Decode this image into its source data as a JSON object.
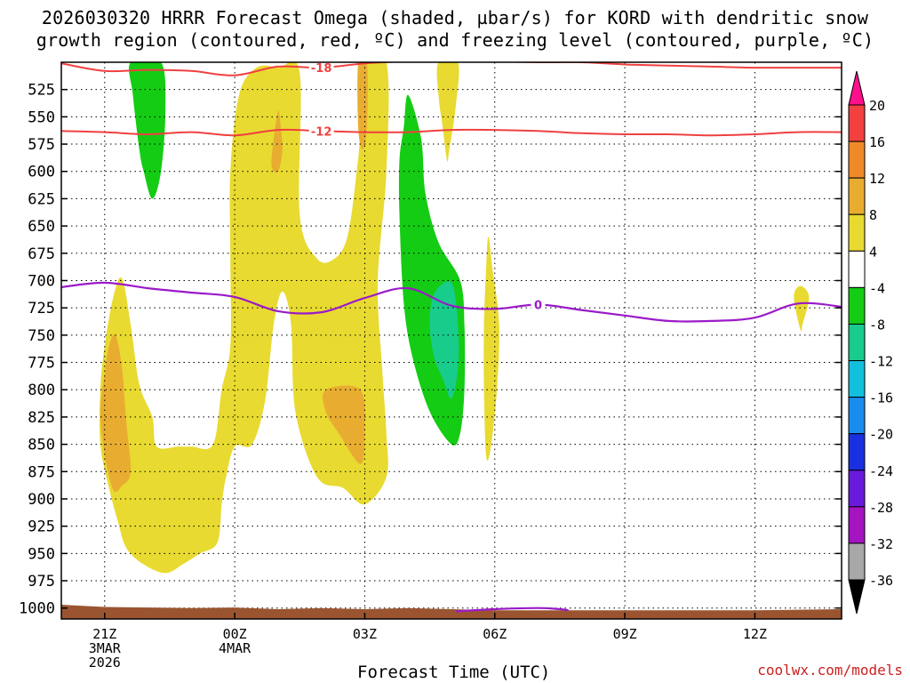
{
  "title_lines": [
    "2026030320 HRRR Forecast Omega (shaded, µbar/s) for KORD with dendritic snow",
    "growth region (contoured, red, ºC) and freezing level (contoured, purple, ºC)"
  ],
  "credit": "coolwx.com/models",
  "chart_data": {
    "type": "contour",
    "title": "2026030320 HRRR Forecast Omega (shaded, µbar/s) for KORD with dendritic snow growth region (contoured, red, ºC) and freezing level (contoured, purple, ºC)",
    "xlabel": "Forecast Time (UTC)",
    "ylabel": "",
    "x_units": "hours after 2026-03-03 20Z",
    "xlim": [
      0,
      18
    ],
    "ylim": [
      1010,
      500
    ],
    "y_levels": [
      525,
      550,
      575,
      600,
      625,
      650,
      675,
      700,
      725,
      750,
      775,
      800,
      825,
      850,
      875,
      900,
      925,
      950,
      975,
      1000
    ],
    "x_ticks": [
      {
        "x": 1,
        "lines": [
          "21Z",
          "3MAR",
          "2026"
        ]
      },
      {
        "x": 4,
        "lines": [
          "00Z",
          "4MAR"
        ]
      },
      {
        "x": 7,
        "lines": [
          "03Z"
        ]
      },
      {
        "x": 10,
        "lines": [
          "06Z"
        ]
      },
      {
        "x": 13,
        "lines": [
          "09Z"
        ]
      },
      {
        "x": 16,
        "lines": [
          "12Z"
        ]
      }
    ],
    "colorbar": {
      "labels": [
        "20",
        "16",
        "12",
        "8",
        "4",
        "-4",
        "-8",
        "-12",
        "-16",
        "-20",
        "-24",
        "-28",
        "-32",
        "-36"
      ],
      "colors": [
        "#ff0f8c",
        "#f24040",
        "#ee8a2a",
        "#e8ad30",
        "#e8da30",
        "#ffffff",
        "#14cc14",
        "#18cc8c",
        "#12c0dc",
        "#1a8cf0",
        "#1830e0",
        "#6a1adc",
        "#a414c0",
        "#a8a8a8",
        "#000000"
      ]
    },
    "omega_regions": [
      {
        "value": 4,
        "color": "#e8da30",
        "points": [
          [
            1.6,
            740
          ],
          [
            1.8,
            795
          ],
          [
            2.1,
            825
          ],
          [
            2.2,
            852
          ],
          [
            2.7,
            852
          ],
          [
            3.0,
            852
          ],
          [
            3.5,
            850
          ],
          [
            3.7,
            800
          ],
          [
            3.9,
            760
          ],
          [
            3.9,
            680
          ],
          [
            3.9,
            600
          ],
          [
            4.1,
            530
          ],
          [
            4.5,
            505
          ],
          [
            5.0,
            505
          ],
          [
            5.5,
            510
          ],
          [
            5.5,
            640
          ],
          [
            5.9,
            680
          ],
          [
            6.3,
            680
          ],
          [
            6.6,
            660
          ],
          [
            6.8,
            605
          ],
          [
            6.9,
            560
          ],
          [
            6.9,
            500
          ],
          [
            7.5,
            500
          ],
          [
            7.5,
            600
          ],
          [
            7.3,
            700
          ],
          [
            7.4,
            780
          ],
          [
            7.5,
            840
          ],
          [
            7.5,
            880
          ],
          [
            7.0,
            905
          ],
          [
            6.5,
            890
          ],
          [
            5.9,
            880
          ],
          [
            5.4,
            820
          ],
          [
            5.3,
            740
          ],
          [
            5.1,
            710
          ],
          [
            4.9,
            740
          ],
          [
            4.7,
            810
          ],
          [
            4.4,
            850
          ],
          [
            4.0,
            852
          ],
          [
            3.8,
            880
          ],
          [
            3.7,
            905
          ],
          [
            3.6,
            940
          ],
          [
            3.2,
            950
          ],
          [
            2.8,
            960
          ],
          [
            2.4,
            968
          ],
          [
            1.9,
            960
          ],
          [
            1.5,
            945
          ],
          [
            1.3,
            920
          ],
          [
            1.1,
            890
          ],
          [
            0.9,
            850
          ],
          [
            0.9,
            800
          ],
          [
            1.0,
            760
          ],
          [
            1.2,
            715
          ],
          [
            1.4,
            698
          ]
        ]
      },
      {
        "value": 8,
        "color": "#e8ad30",
        "points": [
          [
            1.1,
            760
          ],
          [
            1.25,
            750
          ],
          [
            1.4,
            780
          ],
          [
            1.5,
            830
          ],
          [
            1.6,
            875
          ],
          [
            1.4,
            888
          ],
          [
            1.2,
            892
          ],
          [
            1.0,
            860
          ],
          [
            0.9,
            820
          ],
          [
            1.0,
            785
          ]
        ]
      },
      {
        "value": 8,
        "color": "#e8ad30",
        "points": [
          [
            6.1,
            800
          ],
          [
            6.9,
            800
          ],
          [
            7.0,
            840
          ],
          [
            6.9,
            868
          ],
          [
            6.4,
            840
          ],
          [
            6.1,
            820
          ]
        ]
      },
      {
        "value": 8,
        "color": "#e8ad30",
        "points": [
          [
            4.9,
            570
          ],
          [
            5.0,
            545
          ],
          [
            5.05,
            555
          ],
          [
            5.1,
            580
          ],
          [
            5.0,
            600
          ],
          [
            4.85,
            595
          ]
        ]
      },
      {
        "value": 8,
        "color": "#e8ad30",
        "points": [
          [
            6.85,
            500
          ],
          [
            7.05,
            500
          ],
          [
            7.05,
            560
          ],
          [
            6.95,
            580
          ],
          [
            6.85,
            560
          ]
        ]
      },
      {
        "value": 4,
        "color": "#e8da30",
        "points": [
          [
            8.7,
            500
          ],
          [
            9.15,
            500
          ],
          [
            9.1,
            540
          ],
          [
            8.95,
            580
          ],
          [
            8.9,
            590
          ],
          [
            8.8,
            560
          ],
          [
            8.7,
            530
          ]
        ]
      },
      {
        "value": 4,
        "color": "#e8da30",
        "points": [
          [
            9.85,
            660
          ],
          [
            9.95,
            690
          ],
          [
            10.1,
            740
          ],
          [
            10.05,
            800
          ],
          [
            9.9,
            855
          ],
          [
            9.8,
            860
          ],
          [
            9.75,
            800
          ],
          [
            9.75,
            740
          ],
          [
            9.8,
            690
          ]
        ]
      },
      {
        "value": 4,
        "color": "#e8da30",
        "points": [
          [
            17.05,
            705
          ],
          [
            17.25,
            715
          ],
          [
            17.1,
            740
          ],
          [
            17.05,
            745
          ],
          [
            16.9,
            715
          ]
        ]
      },
      {
        "value": -4,
        "color": "#14cc14",
        "points": [
          [
            1.6,
            500
          ],
          [
            2.3,
            500
          ],
          [
            2.4,
            545
          ],
          [
            2.3,
            600
          ],
          [
            2.1,
            625
          ],
          [
            1.9,
            600
          ],
          [
            1.8,
            580
          ],
          [
            1.65,
            530
          ]
        ]
      },
      {
        "value": -4,
        "color": "#14cc14",
        "points": [
          [
            8.0,
            530
          ],
          [
            8.3,
            570
          ],
          [
            8.4,
            620
          ],
          [
            8.7,
            665
          ],
          [
            9.2,
            700
          ],
          [
            9.3,
            740
          ],
          [
            9.3,
            800
          ],
          [
            9.2,
            840
          ],
          [
            9.0,
            850
          ],
          [
            8.5,
            820
          ],
          [
            8.1,
            770
          ],
          [
            7.9,
            720
          ],
          [
            7.8,
            640
          ],
          [
            7.8,
            590
          ],
          [
            7.9,
            560
          ]
        ]
      },
      {
        "value": -8,
        "color": "#18cc8c",
        "points": [
          [
            8.6,
            712
          ],
          [
            9.0,
            702
          ],
          [
            9.15,
            740
          ],
          [
            9.15,
            780
          ],
          [
            9.0,
            808
          ],
          [
            8.8,
            790
          ],
          [
            8.6,
            770
          ],
          [
            8.5,
            740
          ]
        ]
      }
    ],
    "dgz_contours": [
      {
        "label": "-18",
        "color": "#f04040",
        "label_x": 6.0,
        "points": [
          [
            0,
            501
          ],
          [
            1,
            508
          ],
          [
            2,
            507
          ],
          [
            3,
            508
          ],
          [
            4,
            512
          ],
          [
            5,
            504
          ],
          [
            6,
            505
          ],
          [
            7,
            501
          ],
          [
            8,
            499
          ],
          [
            9,
            497
          ],
          [
            10,
            499
          ],
          [
            11,
            500
          ],
          [
            12,
            500
          ],
          [
            13,
            502
          ],
          [
            14,
            503
          ],
          [
            15,
            504
          ],
          [
            16,
            505
          ],
          [
            17,
            505
          ],
          [
            18,
            505
          ]
        ]
      },
      {
        "label": "-12",
        "color": "#f04040",
        "label_x": 6.0,
        "points": [
          [
            0,
            563
          ],
          [
            1,
            564
          ],
          [
            2,
            566
          ],
          [
            3,
            564
          ],
          [
            4,
            567
          ],
          [
            5,
            562
          ],
          [
            6,
            563
          ],
          [
            7,
            564
          ],
          [
            8,
            564
          ],
          [
            9,
            562
          ],
          [
            10,
            562
          ],
          [
            11,
            563
          ],
          [
            12,
            565
          ],
          [
            13,
            566
          ],
          [
            14,
            566
          ],
          [
            15,
            567
          ],
          [
            16,
            566
          ],
          [
            17,
            564
          ],
          [
            18,
            564
          ]
        ]
      }
    ],
    "freezing_level": {
      "label": "0",
      "color": "#9b1ac8",
      "label_x": 11.0,
      "points": [
        [
          0,
          706
        ],
        [
          1,
          702
        ],
        [
          2,
          707
        ],
        [
          3,
          711
        ],
        [
          4,
          715
        ],
        [
          5,
          728
        ],
        [
          6,
          729
        ],
        [
          7,
          716
        ],
        [
          8,
          707
        ],
        [
          9,
          723
        ],
        [
          10,
          726
        ],
        [
          11,
          722
        ],
        [
          12,
          727
        ],
        [
          13,
          732
        ],
        [
          14,
          737
        ],
        [
          15,
          737
        ],
        [
          16,
          734
        ],
        [
          17,
          721
        ],
        [
          18,
          724
        ]
      ]
    },
    "surface_freezing_level": {
      "color": "#9b1ac8",
      "points": [
        [
          9.1,
          1003
        ],
        [
          10.0,
          1001
        ],
        [
          11.0,
          1000
        ],
        [
          11.5,
          1001
        ],
        [
          11.7,
          1002
        ]
      ]
    },
    "terrain": {
      "color": "#9a5530",
      "points": [
        [
          0,
          997
        ],
        [
          1,
          999
        ],
        [
          3,
          1000
        ],
        [
          4,
          999.5
        ],
        [
          5,
          1001
        ],
        [
          6,
          1000
        ],
        [
          7,
          1001
        ],
        [
          8,
          1000
        ],
        [
          9,
          1001
        ],
        [
          10,
          1002
        ],
        [
          12,
          1002
        ],
        [
          14,
          1002
        ],
        [
          16,
          1002
        ],
        [
          18,
          1001
        ]
      ]
    }
  }
}
